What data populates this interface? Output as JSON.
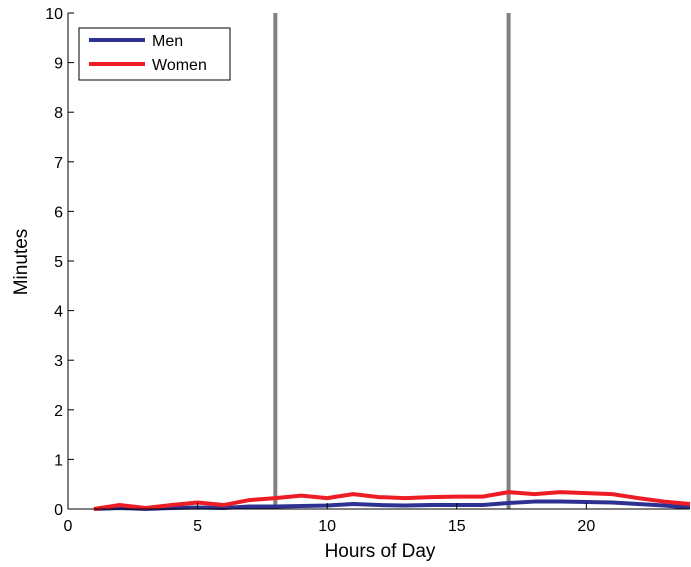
{
  "chart_data": {
    "type": "line",
    "xlabel": "Hours of Day",
    "ylabel": "Minutes",
    "xlim": [
      0,
      24
    ],
    "ylim": [
      0,
      10
    ],
    "x_ticks": [
      0,
      5,
      10,
      15,
      20
    ],
    "y_ticks": [
      0,
      1,
      2,
      3,
      4,
      5,
      6,
      7,
      8,
      9,
      10
    ],
    "grid": false,
    "legend_position": "top-left",
    "x": [
      1,
      2,
      3,
      4,
      5,
      6,
      7,
      8,
      9,
      10,
      11,
      12,
      13,
      14,
      15,
      16,
      17,
      18,
      19,
      20,
      21,
      22,
      23,
      24
    ],
    "series": [
      {
        "name": "Men",
        "color": "#2e3192",
        "values": [
          0.0,
          0.02,
          0.0,
          0.02,
          0.03,
          0.02,
          0.05,
          0.05,
          0.06,
          0.07,
          0.1,
          0.08,
          0.07,
          0.08,
          0.08,
          0.08,
          0.12,
          0.15,
          0.15,
          0.14,
          0.13,
          0.1,
          0.07,
          0.03
        ]
      },
      {
        "name": "Women",
        "color": "#ee1c25",
        "values": [
          0.0,
          0.08,
          0.02,
          0.08,
          0.13,
          0.08,
          0.18,
          0.22,
          0.27,
          0.22,
          0.3,
          0.24,
          0.22,
          0.24,
          0.25,
          0.25,
          0.34,
          0.3,
          0.34,
          0.32,
          0.3,
          0.22,
          0.15,
          0.1
        ]
      }
    ],
    "vertical_lines": [
      {
        "x": 8,
        "color": "#808080"
      },
      {
        "x": 17,
        "color": "#808080"
      }
    ]
  }
}
